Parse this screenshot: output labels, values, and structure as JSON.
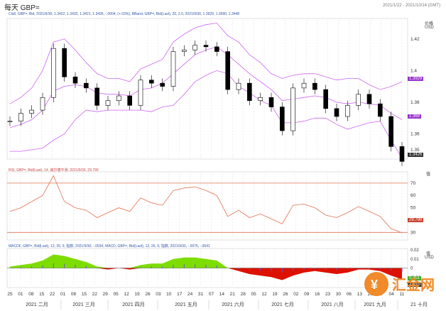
{
  "window": {
    "title": "每天 GBP=",
    "date_range": "2021/1/22 - 2021/10/14 (GMT)"
  },
  "legends": {
    "main": "Cls8, GBP=, Bid, 2021/9/30, 1.3422, 1.3432, 1.3421, 1.3426, -.0004, (+.03%), BBand, GBP=, Bid(Last), 20, 2.0, 2021/9/30, 1.3929, 1.3690, 1.3448",
    "rsi": "RSI, GBP=, Bid(Last), 14, 威尔德平滑, 2021/9/30, 29.790",
    "macd": "MACDF, GBP=, Bid(Last), 12, 26, 9, 指数, 2021/9/30, -.0034, MACD, GBP=, Bid(Last), 12, 26, 9, 指数, 2021/9/30, -.0075, -.0041"
  },
  "axes": {
    "main_unit_title": "价格",
    "main_unit": "USD",
    "rsi_unit_title": "值",
    "macd_unit_title": "值",
    "macd_unit": "USD",
    "main_ticks": [
      "1.42",
      "1.4",
      "1.38",
      "1.36",
      "1.35"
    ],
    "rsi_ticks": [
      "70",
      "60",
      "50",
      "40",
      "30"
    ],
    "macd_ticks": [
      "0.02",
      "0.01",
      "0",
      "-0.01"
    ],
    "x_ticks": [
      "25",
      "01",
      "08",
      "15",
      "22",
      "01",
      "08",
      "15",
      "22",
      "29",
      "05",
      "12",
      "19",
      "26",
      "03",
      "10",
      "17",
      "24",
      "31",
      "07",
      "14",
      "21",
      "28",
      "05",
      "12",
      "19",
      "26",
      "02",
      "09",
      "16",
      "23",
      "30",
      "06",
      "13",
      "20",
      "27",
      "04",
      "11"
    ],
    "month_labels": [
      "2021 二月",
      "2021 三月",
      "2021 四月",
      "2021 五月",
      "2021 六月",
      "2021 七月",
      "2021 八月",
      "2021 九月",
      "21 十月"
    ]
  },
  "badges": {
    "upper": "1.3929",
    "middle": "1.369",
    "last": "1.3426",
    "rsi": "29.790",
    "macd_a": "0.001",
    "macd_b": "-0.007"
  },
  "watermark": {
    "text": "汇金网"
  },
  "colors": {
    "up": "#000000",
    "down": "#000000",
    "band": "#cc66ee",
    "mid": "#cc66ee",
    "rsi": "#e07050",
    "rsi_levels": "#e07050",
    "hist_pos": "#7ddd00",
    "hist_neg": "#dd1100",
    "badge_purple": "#9933cc",
    "badge_dark": "#333333"
  },
  "chart_data": [
    {
      "type": "line",
      "title": "GBP= daily",
      "x": [
        "01-25",
        "02-01",
        "02-08",
        "02-15",
        "02-22",
        "03-01",
        "03-08",
        "03-15",
        "03-22",
        "03-29",
        "04-05",
        "04-12",
        "04-19",
        "04-26",
        "05-03",
        "05-10",
        "05-17",
        "05-24",
        "05-31",
        "06-07",
        "06-14",
        "06-21",
        "06-28",
        "07-05",
        "07-12",
        "07-19",
        "07-26",
        "08-02",
        "08-09",
        "08-16",
        "08-23",
        "08-30",
        "09-06",
        "09-13",
        "09-20",
        "09-27",
        "09-30"
      ],
      "series": [
        {
          "name": "Close",
          "values": [
            1.368,
            1.373,
            1.375,
            1.383,
            1.414,
            1.396,
            1.392,
            1.389,
            1.378,
            1.381,
            1.384,
            1.378,
            1.394,
            1.392,
            1.39,
            1.412,
            1.413,
            1.416,
            1.415,
            1.412,
            1.388,
            1.392,
            1.381,
            1.383,
            1.377,
            1.362,
            1.389,
            1.392,
            1.388,
            1.376,
            1.371,
            1.378,
            1.385,
            1.379,
            1.371,
            1.352,
            1.3426
          ]
        },
        {
          "name": "BB Upper",
          "values": [
            1.379,
            1.383,
            1.389,
            1.4,
            1.418,
            1.42,
            1.413,
            1.405,
            1.398,
            1.395,
            1.395,
            1.393,
            1.401,
            1.404,
            1.407,
            1.418,
            1.423,
            1.427,
            1.429,
            1.43,
            1.422,
            1.418,
            1.41,
            1.405,
            1.398,
            1.395,
            1.397,
            1.398,
            1.398,
            1.396,
            1.394,
            1.395,
            1.395,
            1.391,
            1.388,
            1.39,
            1.3929
          ]
        },
        {
          "name": "BB Middle",
          "values": [
            1.364,
            1.366,
            1.369,
            1.375,
            1.387,
            1.39,
            1.391,
            1.39,
            1.386,
            1.385,
            1.385,
            1.384,
            1.388,
            1.389,
            1.392,
            1.398,
            1.404,
            1.41,
            1.413,
            1.415,
            1.41,
            1.404,
            1.398,
            1.393,
            1.388,
            1.381,
            1.382,
            1.383,
            1.384,
            1.383,
            1.38,
            1.379,
            1.38,
            1.379,
            1.378,
            1.373,
            1.369
          ]
        },
        {
          "name": "BB Lower",
          "values": [
            1.349,
            1.349,
            1.35,
            1.351,
            1.356,
            1.36,
            1.369,
            1.375,
            1.374,
            1.375,
            1.375,
            1.375,
            1.375,
            1.374,
            1.377,
            1.378,
            1.385,
            1.393,
            1.397,
            1.4,
            1.398,
            1.39,
            1.386,
            1.381,
            1.378,
            1.367,
            1.367,
            1.368,
            1.37,
            1.37,
            1.366,
            1.363,
            1.365,
            1.367,
            1.368,
            1.356,
            1.3448
          ]
        }
      ],
      "ylim": [
        1.345,
        1.432
      ]
    },
    {
      "type": "line",
      "title": "RSI 14",
      "series": [
        {
          "name": "RSI",
          "values": [
            47,
            50,
            55,
            60,
            76,
            55,
            50,
            48,
            42,
            46,
            50,
            47,
            58,
            54,
            52,
            64,
            66,
            67,
            64,
            60,
            43,
            48,
            42,
            45,
            41,
            37,
            52,
            53,
            50,
            44,
            42,
            46,
            51,
            47,
            43,
            33,
            29.79
          ]
        }
      ],
      "levels": [
        70,
        30
      ],
      "ylim": [
        25,
        78
      ]
    },
    {
      "type": "bar",
      "title": "MACD 12 26 9",
      "series": [
        {
          "name": "Histogram",
          "values": [
            0.001,
            0.002,
            0.003,
            0.005,
            0.009,
            0.008,
            0.006,
            0.004,
            0.001,
            -0.001,
            0.0,
            -0.001,
            0.002,
            0.003,
            0.003,
            0.006,
            0.007,
            0.007,
            0.006,
            0.005,
            0.0,
            -0.002,
            -0.004,
            -0.005,
            -0.006,
            -0.008,
            -0.005,
            -0.003,
            -0.002,
            -0.003,
            -0.004,
            -0.003,
            -0.001,
            -0.001,
            -0.002,
            -0.005,
            -0.0075
          ]
        }
      ],
      "ylim": [
        -0.012,
        0.012
      ]
    }
  ]
}
